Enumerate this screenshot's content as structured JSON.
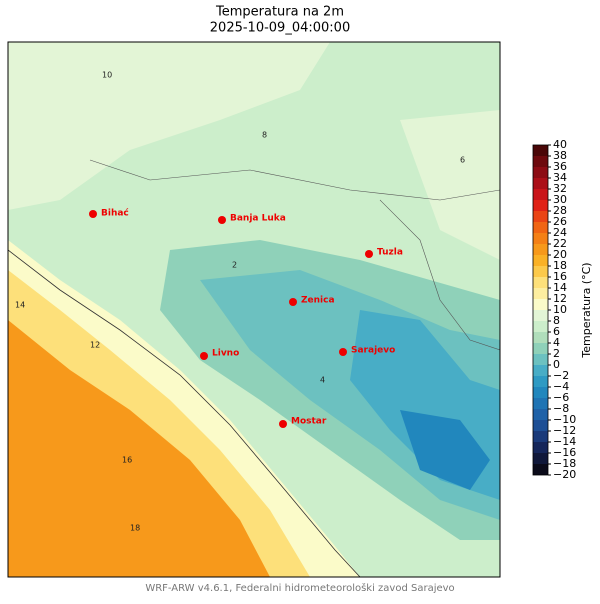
{
  "title": "Temperatura na 2m",
  "subtitle": "2025-10-09_04:00:00",
  "footer": "WRF-ARW v4.6.1, Federalni hidrometeorološki zavod Sarajevo",
  "map": {
    "cities": [
      "Bihać",
      "Banja Luka",
      "Tuzla",
      "Zenica",
      "Livno",
      "Sarajevo",
      "Mostar"
    ],
    "contour_labels": [
      10,
      8,
      6,
      4,
      2,
      12,
      14,
      16,
      18
    ]
  },
  "colorbar": {
    "label": "Temperatura (°C)",
    "lim": [
      -20,
      40
    ],
    "ticks": [
      {
        "value": -20,
        "label": "−20"
      },
      {
        "value": -18,
        "label": "−18"
      },
      {
        "value": -16,
        "label": "−16"
      },
      {
        "value": -14,
        "label": "−14"
      },
      {
        "value": -12,
        "label": "−12"
      },
      {
        "value": -10,
        "label": "−10"
      },
      {
        "value": -8,
        "label": "−8"
      },
      {
        "value": -6,
        "label": "−6"
      },
      {
        "value": -4,
        "label": "−4"
      },
      {
        "value": -2,
        "label": "−2"
      },
      0,
      2,
      4,
      6,
      8,
      10,
      12,
      14,
      16,
      18,
      20,
      22,
      24,
      26,
      28,
      30,
      32,
      34,
      36,
      38,
      40
    ],
    "colors": [
      "#0b0b1a",
      "#10183a",
      "#15265a",
      "#1a3a7a",
      "#1e4f95",
      "#1f62a8",
      "#1f74b4",
      "#2187bd",
      "#2e9ac3",
      "#48adc6",
      "#6cc1c0",
      "#8fd1b9",
      "#b0debb",
      "#cceecb",
      "#e3f5d6",
      "#fbfbc9",
      "#fdeea0",
      "#fde07a",
      "#fcc94a",
      "#fab126",
      "#f7991b",
      "#f48016",
      "#f06514",
      "#ea4415",
      "#e02216",
      "#c9141a",
      "#ab0f18",
      "#8c0c14",
      "#6d0a0e",
      "#4a0708"
    ]
  }
}
